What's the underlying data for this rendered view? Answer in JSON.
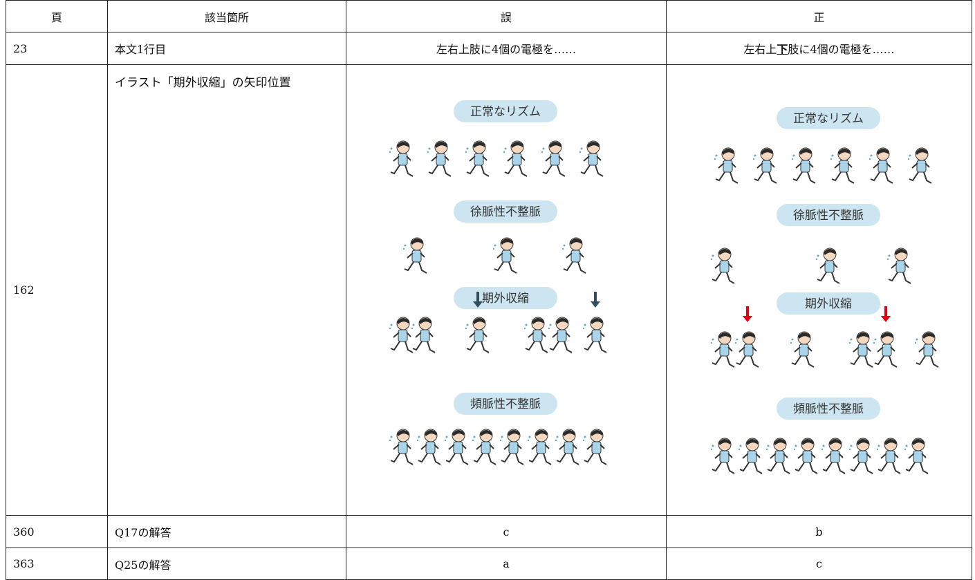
{
  "table": {
    "header": [
      "頁",
      "該当箇所",
      "誤",
      "正"
    ],
    "rows": [
      [
        "23",
        "本文1行目",
        "左右上肢に4個の電極を……",
        {
          "segments": [
            "左右上",
            "下",
            "肢に4個の電極を……"
          ]
        }
      ],
      [
        "162",
        "イラスト「期外収縮」の矢印位置",
        {
          "labels": [
            "正常なリズム",
            "徐脈性不整脈",
            "期外収縮",
            "頻脈性不整脈"
          ]
        },
        {
          "labels": [
            "正常なリズム",
            "徐脈性不整脈",
            "期外収縮",
            "頻脈性不整脈"
          ]
        }
      ],
      [
        "360",
        "Q17の解答",
        "c",
        "b"
      ],
      [
        "363",
        "Q25の解答",
        "a",
        "c"
      ]
    ]
  }
}
